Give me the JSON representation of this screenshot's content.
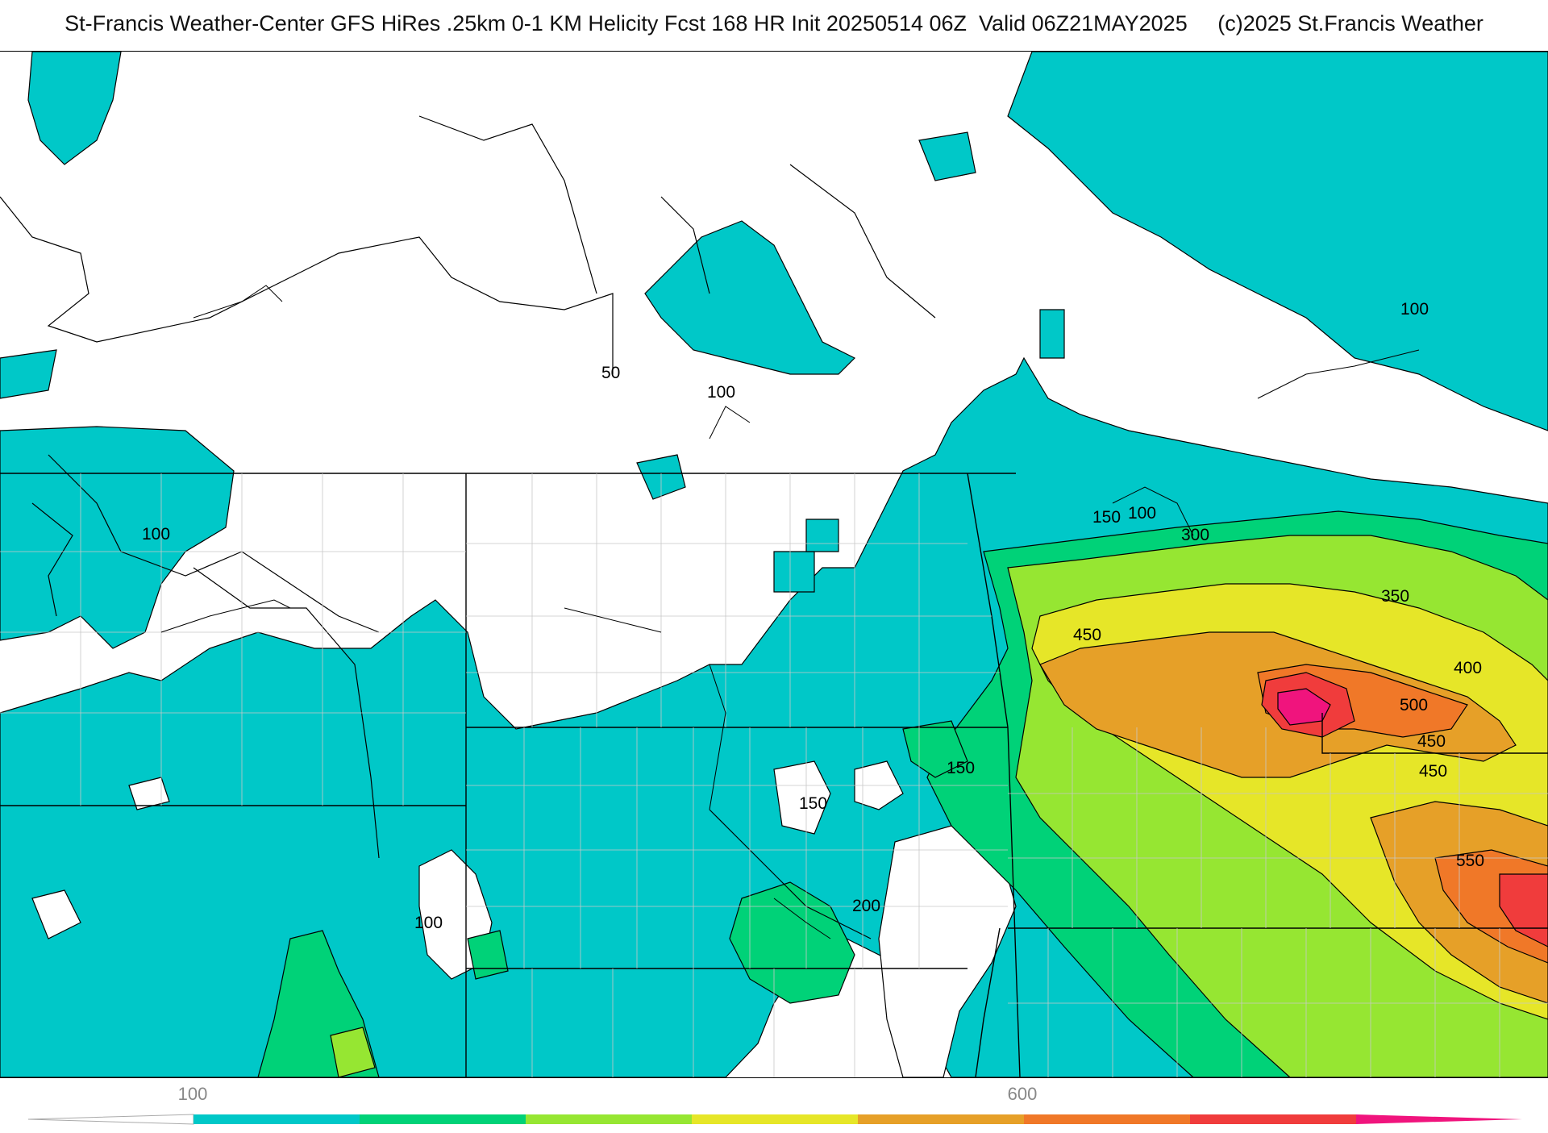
{
  "header": {
    "title": "St-Francis Weather-Center GFS HiRes .25km 0-1 KM Helicity Fcst 168 HR Init 20250514 06Z  Valid 06Z21MAY2025     (c)2025 St.Francis Weather"
  },
  "map": {
    "contour_labels": [
      "50",
      "100",
      "100",
      "100",
      "100",
      "100",
      "150",
      "150",
      "150",
      "200",
      "300",
      "350",
      "400",
      "450",
      "450",
      "500",
      "450",
      "550",
      "100"
    ]
  },
  "colorbar": {
    "tick_labels": [
      "100",
      "600"
    ],
    "colors": [
      "#00c8c8",
      "#00d278",
      "#96e632",
      "#e6e628",
      "#e6a028",
      "#f07828",
      "#f03c3c",
      "#f0147d"
    ]
  }
}
